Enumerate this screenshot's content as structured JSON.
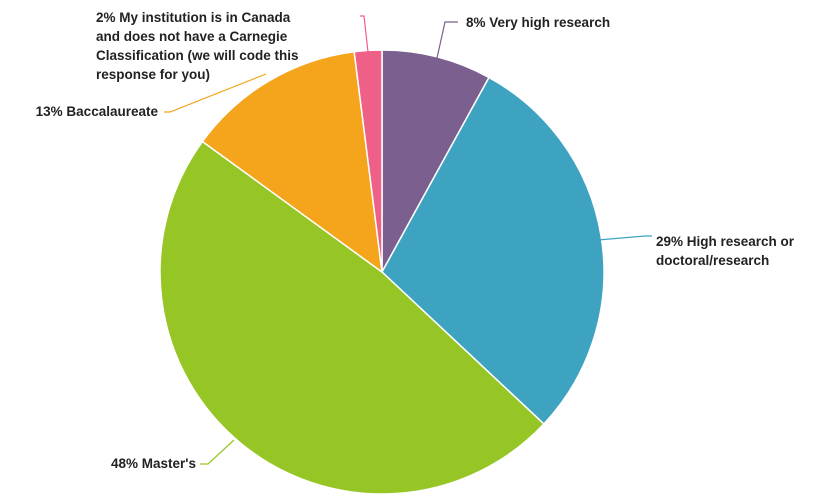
{
  "chart_data": {
    "type": "pie",
    "start_angle_deg": 0,
    "direction": "clockwise",
    "slices": [
      {
        "label": "Very high research",
        "value": 8,
        "color": "#7b5f8f",
        "display": [
          "8% Very high research"
        ]
      },
      {
        "label": "High research or doctoral/research",
        "value": 29,
        "color": "#3ea3c1",
        "display": [
          "29% High research or",
          "doctoral/research"
        ]
      },
      {
        "label": "Master's",
        "value": 48,
        "color": "#96c526",
        "display": [
          "48% Master's"
        ]
      },
      {
        "label": "Baccalaureate",
        "value": 13,
        "color": "#f4a51c",
        "display": [
          "13% Baccalaureate"
        ]
      },
      {
        "label": "My institution is in Canada and does not have a Carnegie Classification (we will code this response for you)",
        "value": 2,
        "color": "#ef6088",
        "display": [
          "2% My institution is in Canada",
          "and does not have a Carnegie",
          "Classification (we will code this",
          "response for you)"
        ]
      }
    ]
  }
}
